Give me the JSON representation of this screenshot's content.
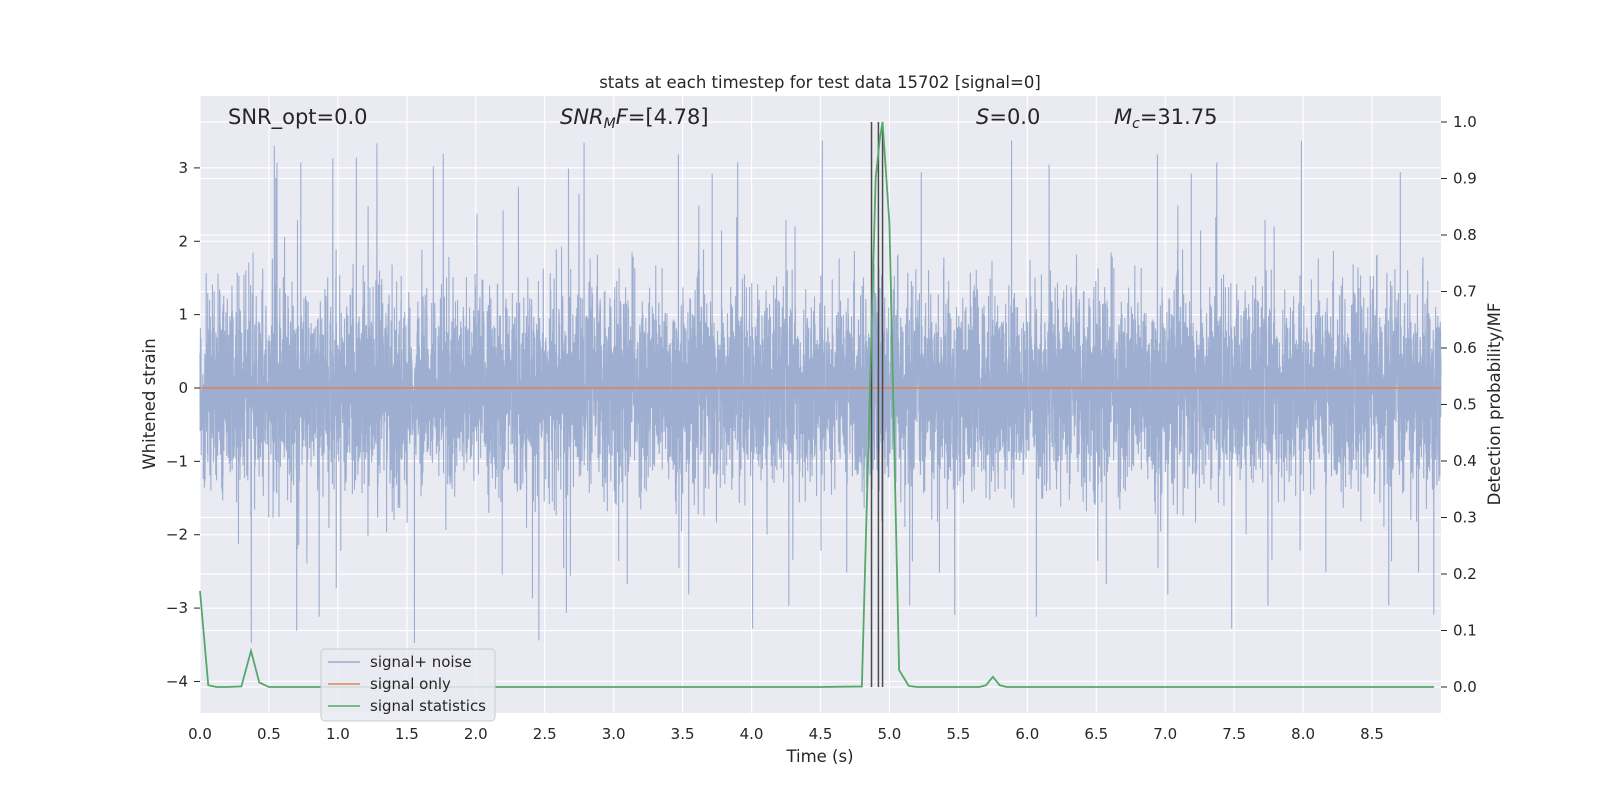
{
  "chart_data": {
    "type": "line",
    "title": "stats at each timestep for test data 15702 [signal=0]",
    "xlabel": "Time (s)",
    "ylabel": "Whitened strain",
    "ylabel_right": "Detection probability/MF",
    "xlim": [
      0.0,
      9.0
    ],
    "ylim": [
      -4.43,
      3.98
    ],
    "ylim_right": [
      -0.046,
      1.046
    ],
    "xticks": [
      "0.0",
      "0.5",
      "1.0",
      "1.5",
      "2.0",
      "2.5",
      "3.0",
      "3.5",
      "4.0",
      "4.5",
      "5.0",
      "5.5",
      "6.0",
      "6.5",
      "7.0",
      "7.5",
      "8.0",
      "8.5"
    ],
    "yticks": [
      "−4",
      "−3",
      "−2",
      "−1",
      "0",
      "1",
      "2",
      "3"
    ],
    "yticks_right": [
      "0.0",
      "0.1",
      "0.2",
      "0.3",
      "0.4",
      "0.5",
      "0.6",
      "0.7",
      "0.8",
      "0.9",
      "1.0"
    ],
    "grid": true,
    "legend_position": "lower-left",
    "annotations": {
      "snr_opt": "SNR_opt=0.0",
      "snr_mf_main": "SNR",
      "snr_mf_sub": "M",
      "snr_mf_rest": "F",
      "snr_mf_value": "=[4.78]",
      "s_main": "S",
      "s_value": "=0.0",
      "mc_main": "M",
      "mc_sub": "c",
      "mc_value": "=31.75"
    },
    "vertical_lines_x": [
      4.87,
      4.92,
      4.95
    ],
    "series": [
      {
        "name": "signal+ noise",
        "axis": "left",
        "color": "#99abce",
        "noise_envelope": {
          "core_sigma": 0.65,
          "typical_max": 2.5,
          "peak_max": 3.5,
          "peak_min": -4.0,
          "n_points": 9000
        }
      },
      {
        "name": "signal only",
        "axis": "left",
        "color": "#dd8452",
        "x": [
          0.0,
          9.0
        ],
        "y": [
          0.0,
          0.0
        ]
      },
      {
        "name": "signal statistics",
        "axis": "right",
        "color": "#55a868",
        "x": [
          0.0,
          0.06,
          0.12,
          0.2,
          0.3,
          0.37,
          0.43,
          0.5,
          4.5,
          4.8,
          4.85,
          4.9,
          4.93,
          4.95,
          5.0,
          5.07,
          5.14,
          5.2,
          5.65,
          5.7,
          5.75,
          5.8,
          5.85,
          8.95
        ],
        "y": [
          0.17,
          0.003,
          0.0,
          0.0,
          0.001,
          0.064,
          0.008,
          0.0,
          0.0,
          0.001,
          0.45,
          0.9,
          0.97,
          1.0,
          0.82,
          0.03,
          0.002,
          0.0,
          0.0,
          0.003,
          0.018,
          0.003,
          0.0,
          0.0
        ]
      }
    ]
  }
}
